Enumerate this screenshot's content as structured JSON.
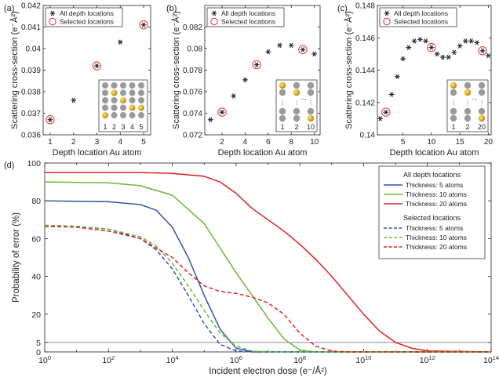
{
  "colors": {
    "axis": "#222222",
    "marker": "#222222",
    "circle": "#dd3333",
    "t5": "#3355aa",
    "t10": "#66bb33",
    "t20": "#dd2222",
    "gold": "#d4a017",
    "grey_atom": "#9a9a9a"
  },
  "chart_data": [
    {
      "panel": "(a)",
      "type": "scatter",
      "xlabel": "Depth location Au atom",
      "ylabel": "Scattering cross-section (e⁻Å²)",
      "xlim": [
        0.7,
        5.3
      ],
      "ylim": [
        0.036,
        0.042
      ],
      "xticks": [
        "1",
        "2",
        "3",
        "4",
        "5"
      ],
      "yticks": [
        "0.036",
        "0.037",
        "0.038",
        "0.039",
        "0.04",
        "0.041",
        "0.042"
      ],
      "legend": [
        "All depth locations",
        "Selected locations"
      ],
      "x": [
        1,
        2,
        3,
        4,
        5
      ],
      "y": [
        0.0367,
        0.0376,
        0.0392,
        0.0403,
        0.0411
      ],
      "selected_x": [
        1,
        3,
        5
      ],
      "inset_labels": [
        "1",
        "2",
        "3",
        "4",
        "5"
      ]
    },
    {
      "panel": "(b)",
      "type": "scatter",
      "xlabel": "Depth location Au atom",
      "ylabel": "Scattering cross-section (e⁻Å²)",
      "xlim": [
        0.5,
        10.5
      ],
      "ylim": [
        0.072,
        0.084
      ],
      "xticks": [
        "2",
        "4",
        "6",
        "8",
        "10"
      ],
      "yticks": [
        "0.072",
        "0.074",
        "0.076",
        "0.078",
        "0.08",
        "0.082"
      ],
      "legend": [
        "All depth locations",
        "Selected locations"
      ],
      "x": [
        1,
        2,
        3,
        4,
        5,
        6,
        7,
        8,
        9,
        10
      ],
      "y": [
        0.0734,
        0.0741,
        0.0756,
        0.0771,
        0.0785,
        0.0797,
        0.0803,
        0.0803,
        0.0799,
        0.0795
      ],
      "selected_x": [
        2,
        5,
        9
      ],
      "inset_labels": [
        "1",
        "2",
        "10"
      ]
    },
    {
      "panel": "(c)",
      "type": "scatter",
      "xlabel": "Depth location Au atom",
      "ylabel": "Scattering cross-section (e⁻Å²)",
      "xlim": [
        0.5,
        20.5
      ],
      "ylim": [
        0.14,
        0.148
      ],
      "xticks": [
        "5",
        "10",
        "15",
        "20"
      ],
      "yticks": [
        "0.14",
        "0.142",
        "0.144",
        "0.146",
        "0.148"
      ],
      "legend": [
        "All depth locations",
        "Selected locations"
      ],
      "x": [
        1,
        2,
        3,
        4,
        5,
        6,
        7,
        8,
        9,
        10,
        11,
        12,
        13,
        14,
        15,
        16,
        17,
        18,
        19,
        20
      ],
      "y": [
        0.141,
        0.1414,
        0.1425,
        0.1436,
        0.1447,
        0.1454,
        0.1458,
        0.1459,
        0.1458,
        0.1454,
        0.145,
        0.1448,
        0.1448,
        0.1451,
        0.1455,
        0.1458,
        0.1458,
        0.1457,
        0.1452,
        0.1449
      ],
      "selected_x": [
        2,
        10,
        19
      ],
      "inset_labels": [
        "1",
        "2",
        "20"
      ]
    },
    {
      "panel": "(d)",
      "type": "line",
      "xlabel": "Incident electron dose (e⁻/Å²)",
      "ylabel": "Probability of error (%)",
      "xscale": "log",
      "xlim_exp": [
        0,
        14
      ],
      "ylim": [
        0,
        100
      ],
      "xtick_exps": [
        0,
        2,
        4,
        6,
        8,
        10,
        12,
        14
      ],
      "xtick_base": "10",
      "yticks": [
        "0",
        "5",
        "20",
        "40",
        "60",
        "80",
        "100"
      ],
      "reference_line_y": 5,
      "legend_title_all": "All depth locations",
      "legend_title_sel": "Selected locations",
      "series": [
        {
          "name": "Thickness: 5 atoms",
          "group": "all",
          "color_key": "t5",
          "dashed": false,
          "points": [
            [
              0,
              80
            ],
            [
              2,
              79.5
            ],
            [
              3,
              78
            ],
            [
              3.5,
              75
            ],
            [
              4,
              66
            ],
            [
              4.5,
              50
            ],
            [
              5,
              30
            ],
            [
              5.5,
              12
            ],
            [
              6,
              2
            ],
            [
              6.5,
              0
            ],
            [
              14,
              0
            ]
          ]
        },
        {
          "name": "Thickness: 10 atoms",
          "group": "all",
          "color_key": "t10",
          "dashed": false,
          "points": [
            [
              0,
              90
            ],
            [
              2,
              89.5
            ],
            [
              3,
              88
            ],
            [
              4,
              83
            ],
            [
              5,
              68
            ],
            [
              5.5,
              55
            ],
            [
              6,
              42
            ],
            [
              6.5,
              30
            ],
            [
              7,
              18
            ],
            [
              7.5,
              7
            ],
            [
              8,
              1
            ],
            [
              8.5,
              0
            ],
            [
              14,
              0
            ]
          ]
        },
        {
          "name": "Thickness: 20 atoms",
          "group": "all",
          "color_key": "t20",
          "dashed": false,
          "points": [
            [
              0,
              95
            ],
            [
              3,
              95
            ],
            [
              4,
              94.5
            ],
            [
              5,
              93
            ],
            [
              5.5,
              90
            ],
            [
              6,
              84
            ],
            [
              6.5,
              76
            ],
            [
              7,
              70
            ],
            [
              7.5,
              64
            ],
            [
              8,
              57
            ],
            [
              8.5,
              49
            ],
            [
              9,
              40
            ],
            [
              9.5,
              30
            ],
            [
              10,
              20
            ],
            [
              10.5,
              11
            ],
            [
              11,
              5
            ],
            [
              11.5,
              2
            ],
            [
              12,
              0.5
            ],
            [
              14,
              0
            ]
          ]
        },
        {
          "name": "Thickness: 5 atoms",
          "group": "selected",
          "color_key": "t5",
          "dashed": true,
          "points": [
            [
              0,
              67
            ],
            [
              1,
              66.5
            ],
            [
              2,
              65
            ],
            [
              3,
              60
            ],
            [
              3.5,
              54
            ],
            [
              4,
              44
            ],
            [
              4.5,
              30
            ],
            [
              5,
              15
            ],
            [
              5.5,
              4
            ],
            [
              6,
              0.5
            ],
            [
              6.5,
              0
            ],
            [
              14,
              0
            ]
          ]
        },
        {
          "name": "Thickness: 10 atoms",
          "group": "selected",
          "color_key": "t10",
          "dashed": true,
          "points": [
            [
              0,
              67
            ],
            [
              1,
              66.5
            ],
            [
              2,
              65
            ],
            [
              3,
              61
            ],
            [
              3.5,
              56
            ],
            [
              4,
              47
            ],
            [
              4.5,
              35
            ],
            [
              5,
              22
            ],
            [
              5.5,
              10
            ],
            [
              6,
              3
            ],
            [
              6.5,
              0.5
            ],
            [
              7,
              0
            ],
            [
              14,
              0
            ]
          ]
        },
        {
          "name": "Thickness: 20 atoms",
          "group": "selected",
          "color_key": "t20",
          "dashed": true,
          "points": [
            [
              0,
              66.5
            ],
            [
              1,
              66
            ],
            [
              2,
              64
            ],
            [
              3,
              60
            ],
            [
              4,
              50
            ],
            [
              4.5,
              42
            ],
            [
              5,
              35
            ],
            [
              5.5,
              32
            ],
            [
              6,
              31
            ],
            [
              6.5,
              29
            ],
            [
              7,
              26
            ],
            [
              7.5,
              20
            ],
            [
              8,
              10
            ],
            [
              8.5,
              3
            ],
            [
              9,
              0.5
            ],
            [
              9.5,
              0
            ],
            [
              14,
              0
            ]
          ]
        }
      ]
    }
  ]
}
